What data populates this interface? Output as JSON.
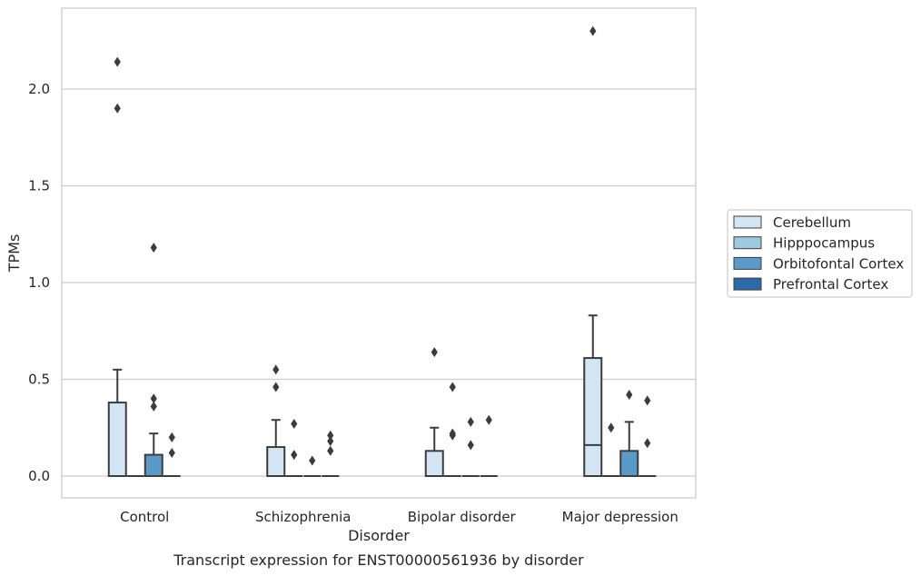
{
  "chart_data": {
    "type": "box",
    "title": "",
    "caption": "Transcript expression for ENST00000561936 by disorder",
    "xlabel": "Disorder",
    "ylabel": "TPMs",
    "ylim": [
      -0.11,
      2.43
    ],
    "yticks": [
      "0.0",
      "0.5",
      "1.0",
      "1.5",
      "2.0"
    ],
    "grid": true,
    "legend_position": "right",
    "categories": [
      "Control",
      "Schizophrenia",
      "Bipolar disorder",
      "Major depression"
    ],
    "series": [
      {
        "name": "Cerebellum",
        "color": "#d3e4f3",
        "boxes": [
          {
            "q1": 0,
            "median": 0,
            "q3": 0.38,
            "whisker_low": 0,
            "whisker_high": 0.55,
            "outliers": [
              1.9,
              2.14
            ]
          },
          {
            "q1": 0,
            "median": 0,
            "q3": 0.15,
            "whisker_low": 0,
            "whisker_high": 0.29,
            "outliers": [
              0.46,
              0.55
            ]
          },
          {
            "q1": 0,
            "median": 0,
            "q3": 0.13,
            "whisker_low": 0,
            "whisker_high": 0.25,
            "outliers": [
              0.64
            ]
          },
          {
            "q1": 0,
            "median": 0.16,
            "q3": 0.61,
            "whisker_low": 0,
            "whisker_high": 0.83,
            "outliers": [
              2.3
            ]
          }
        ]
      },
      {
        "name": "Hipppocampus",
        "color": "#9ecae1",
        "boxes": [
          {
            "q1": 0,
            "median": 0,
            "q3": 0,
            "whisker_low": 0,
            "whisker_high": 0,
            "outliers": []
          },
          {
            "q1": 0,
            "median": 0,
            "q3": 0,
            "whisker_low": 0,
            "whisker_high": 0,
            "outliers": [
              0.11,
              0.27
            ]
          },
          {
            "q1": 0,
            "median": 0,
            "q3": 0,
            "whisker_low": 0,
            "whisker_high": 0,
            "outliers": [
              0.21,
              0.22,
              0.46
            ]
          },
          {
            "q1": 0,
            "median": 0,
            "q3": 0,
            "whisker_low": 0,
            "whisker_high": 0,
            "outliers": [
              0.25
            ]
          }
        ]
      },
      {
        "name": "Orbitofontal Cortex",
        "color": "#5a9ac9",
        "boxes": [
          {
            "q1": 0,
            "median": 0,
            "q3": 0.11,
            "whisker_low": 0,
            "whisker_high": 0.22,
            "outliers": [
              0.36,
              0.4,
              1.18
            ]
          },
          {
            "q1": 0,
            "median": 0,
            "q3": 0,
            "whisker_low": 0,
            "whisker_high": 0,
            "outliers": [
              0.08
            ]
          },
          {
            "q1": 0,
            "median": 0,
            "q3": 0,
            "whisker_low": 0,
            "whisker_high": 0,
            "outliers": [
              0.16,
              0.28
            ]
          },
          {
            "q1": 0,
            "median": 0,
            "q3": 0.13,
            "whisker_low": 0,
            "whisker_high": 0.28,
            "outliers": [
              0.42
            ]
          }
        ]
      },
      {
        "name": "Prefrontal Cortex",
        "color": "#2b6aa6",
        "boxes": [
          {
            "q1": 0,
            "median": 0,
            "q3": 0,
            "whisker_low": 0,
            "whisker_high": 0,
            "outliers": [
              0.12,
              0.2
            ]
          },
          {
            "q1": 0,
            "median": 0,
            "q3": 0,
            "whisker_low": 0,
            "whisker_high": 0,
            "outliers": [
              0.13,
              0.18,
              0.21
            ]
          },
          {
            "q1": 0,
            "median": 0,
            "q3": 0,
            "whisker_low": 0,
            "whisker_high": 0,
            "outliers": [
              0.29
            ]
          },
          {
            "q1": 0,
            "median": 0,
            "q3": 0,
            "whisker_low": 0,
            "whisker_high": 0,
            "outliers": [
              0.17,
              0.39
            ]
          }
        ]
      }
    ]
  }
}
